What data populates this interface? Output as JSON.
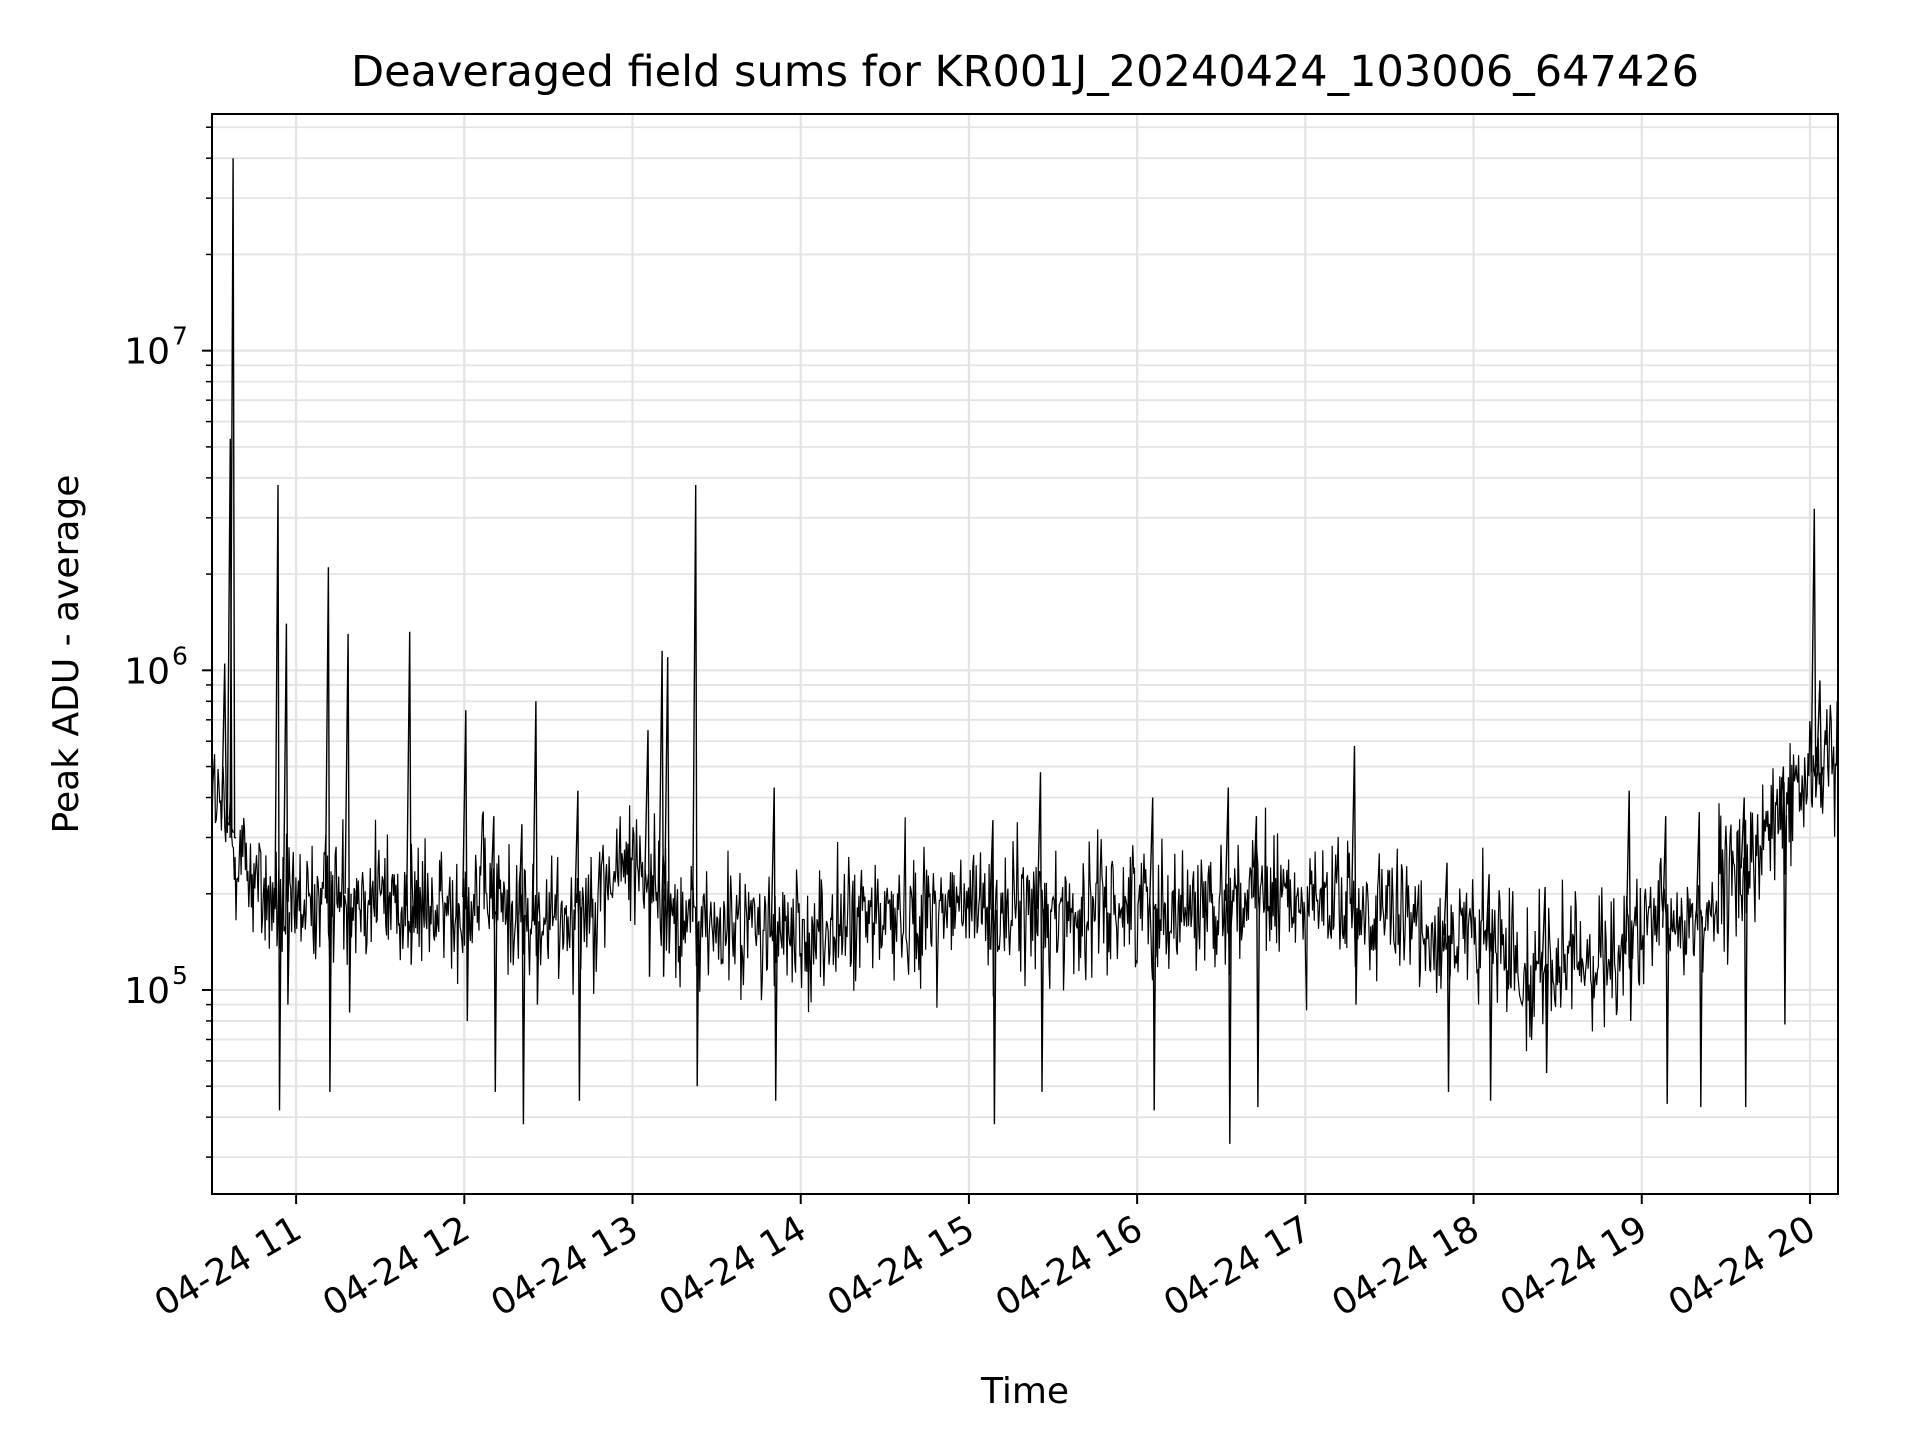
{
  "chart_data": {
    "type": "line",
    "title": "Deaveraged field sums for KR001J_20240424_103006_647426",
    "xlabel": "Time",
    "ylabel": "Peak ADU - average",
    "yscale": "log",
    "ylim": [
      23000,
      55000000
    ],
    "xlim": [
      "2024-04-24 10:30",
      "2024-04-24 20:10"
    ],
    "grid": true,
    "line_color": "#000000",
    "x_ticks": [
      {
        "label": "04-24 11",
        "time": "2024-04-24 11:00"
      },
      {
        "label": "04-24 12",
        "time": "2024-04-24 12:00"
      },
      {
        "label": "04-24 13",
        "time": "2024-04-24 13:00"
      },
      {
        "label": "04-24 14",
        "time": "2024-04-24 14:00"
      },
      {
        "label": "04-24 15",
        "time": "2024-04-24 15:00"
      },
      {
        "label": "04-24 16",
        "time": "2024-04-24 16:00"
      },
      {
        "label": "04-24 17",
        "time": "2024-04-24 17:00"
      },
      {
        "label": "04-24 18",
        "time": "2024-04-24 18:00"
      },
      {
        "label": "04-24 19",
        "time": "2024-04-24 19:00"
      },
      {
        "label": "04-24 20",
        "time": "2024-04-24 20:00"
      }
    ],
    "y_ticks": [
      {
        "base": "10",
        "exp": "5",
        "value": 100000
      },
      {
        "base": "10",
        "exp": "6",
        "value": 1000000
      },
      {
        "base": "10",
        "exp": "7",
        "value": 10000000
      }
    ],
    "series": [
      {
        "x": [
          "2024-04-24 10:30",
          "2024-04-24 10:36",
          "2024-04-24 10:42",
          "2024-04-24 10:48",
          "2024-04-24 10:54",
          "2024-04-24 11:00",
          "2024-04-24 11:06",
          "2024-04-24 11:12",
          "2024-04-24 11:18",
          "2024-04-24 11:24",
          "2024-04-24 11:30",
          "2024-04-24 11:36",
          "2024-04-24 11:42",
          "2024-04-24 11:48",
          "2024-04-24 11:54",
          "2024-04-24 12:00",
          "2024-04-24 12:06",
          "2024-04-24 12:12",
          "2024-04-24 12:18",
          "2024-04-24 12:24",
          "2024-04-24 12:30",
          "2024-04-24 12:36",
          "2024-04-24 12:42",
          "2024-04-24 12:48",
          "2024-04-24 12:54",
          "2024-04-24 13:00",
          "2024-04-24 13:06",
          "2024-04-24 13:12",
          "2024-04-24 13:18",
          "2024-04-24 13:24",
          "2024-04-24 13:30",
          "2024-04-24 13:36",
          "2024-04-24 13:42",
          "2024-04-24 13:48",
          "2024-04-24 13:54",
          "2024-04-24 14:00",
          "2024-04-24 14:06",
          "2024-04-24 14:12",
          "2024-04-24 14:18",
          "2024-04-24 14:24",
          "2024-04-24 14:30",
          "2024-04-24 14:36",
          "2024-04-24 14:42",
          "2024-04-24 14:48",
          "2024-04-24 14:54",
          "2024-04-24 15:00",
          "2024-04-24 15:06",
          "2024-04-24 15:12",
          "2024-04-24 15:18",
          "2024-04-24 15:24",
          "2024-04-24 15:30",
          "2024-04-24 15:36",
          "2024-04-24 15:42",
          "2024-04-24 15:48",
          "2024-04-24 15:54",
          "2024-04-24 16:00",
          "2024-04-24 16:06",
          "2024-04-24 16:12",
          "2024-04-24 16:18",
          "2024-04-24 16:24",
          "2024-04-24 16:30",
          "2024-04-24 16:36",
          "2024-04-24 16:42",
          "2024-04-24 16:48",
          "2024-04-24 16:54",
          "2024-04-24 17:00",
          "2024-04-24 17:06",
          "2024-04-24 17:12",
          "2024-04-24 17:18",
          "2024-04-24 17:24",
          "2024-04-24 17:30",
          "2024-04-24 17:36",
          "2024-04-24 17:42",
          "2024-04-24 17:48",
          "2024-04-24 17:54",
          "2024-04-24 18:00",
          "2024-04-24 18:06",
          "2024-04-24 18:12",
          "2024-04-24 18:18",
          "2024-04-24 18:24",
          "2024-04-24 18:30",
          "2024-04-24 18:36",
          "2024-04-24 18:42",
          "2024-04-24 18:48",
          "2024-04-24 18:54",
          "2024-04-24 19:00",
          "2024-04-24 19:06",
          "2024-04-24 19:12",
          "2024-04-24 19:18",
          "2024-04-24 19:24",
          "2024-04-24 19:30",
          "2024-04-24 19:36",
          "2024-04-24 19:42",
          "2024-04-24 19:48",
          "2024-04-24 19:54",
          "2024-04-24 20:00",
          "2024-04-24 20:06"
        ],
        "values": [
          420000,
          310000,
          250000,
          200000,
          175000,
          175000,
          185000,
          195000,
          200000,
          205000,
          200000,
          190000,
          180000,
          175000,
          170000,
          195000,
          205000,
          190000,
          175000,
          165000,
          160000,
          175000,
          185000,
          200000,
          230000,
          260000,
          230000,
          190000,
          170000,
          160000,
          155000,
          155000,
          160000,
          150000,
          145000,
          145000,
          150000,
          155000,
          160000,
          165000,
          170000,
          175000,
          175000,
          180000,
          180000,
          180000,
          180000,
          175000,
          175000,
          180000,
          175000,
          170000,
          175000,
          180000,
          185000,
          190000,
          185000,
          180000,
          180000,
          185000,
          190000,
          190000,
          195000,
          195000,
          190000,
          190000,
          185000,
          180000,
          175000,
          170000,
          165000,
          160000,
          155000,
          150000,
          145000,
          145000,
          140000,
          130000,
          120000,
          115000,
          115000,
          120000,
          125000,
          130000,
          140000,
          150000,
          155000,
          160000,
          165000,
          180000,
          200000,
          240000,
          280000,
          330000,
          400000,
          470000,
          530000
        ],
        "spikes": [
          {
            "x": "2024-04-24 10:37",
            "high": 40000000,
            "low": 300000
          },
          {
            "x": "2024-04-24 10:36",
            "high": 5300000,
            "low": 320000
          },
          {
            "x": "2024-04-24 10:34",
            "high": 1050000,
            "low": 400000
          },
          {
            "x": "2024-04-24 10:53",
            "high": 3800000,
            "low": 42000
          },
          {
            "x": "2024-04-24 10:56",
            "high": 1400000,
            "low": 90000
          },
          {
            "x": "2024-04-24 11:11",
            "high": 2100000,
            "low": 48000
          },
          {
            "x": "2024-04-24 11:18",
            "high": 1300000,
            "low": 85000
          },
          {
            "x": "2024-04-24 11:40",
            "high": 1320000,
            "low": 120000
          },
          {
            "x": "2024-04-24 12:00",
            "high": 750000,
            "low": 80000
          },
          {
            "x": "2024-04-24 12:10",
            "high": 350000,
            "low": 48000
          },
          {
            "x": "2024-04-24 12:20",
            "high": 330000,
            "low": 38000
          },
          {
            "x": "2024-04-24 12:25",
            "high": 800000,
            "low": 90000
          },
          {
            "x": "2024-04-24 12:40",
            "high": 420000,
            "low": 45000
          },
          {
            "x": "2024-04-24 13:05",
            "high": 650000,
            "low": 110000
          },
          {
            "x": "2024-04-24 13:10",
            "high": 1150000,
            "low": 110000
          },
          {
            "x": "2024-04-24 13:12",
            "high": 1100000,
            "low": 130000
          },
          {
            "x": "2024-04-24 13:22",
            "high": 3800000,
            "low": 50000
          },
          {
            "x": "2024-04-24 13:50",
            "high": 430000,
            "low": 45000
          },
          {
            "x": "2024-04-24 15:08",
            "high": 340000,
            "low": 38000
          },
          {
            "x": "2024-04-24 15:25",
            "high": 480000,
            "low": 48000
          },
          {
            "x": "2024-04-24 16:05",
            "high": 400000,
            "low": 42000
          },
          {
            "x": "2024-04-24 16:32",
            "high": 430000,
            "low": 33000
          },
          {
            "x": "2024-04-24 16:42",
            "high": 350000,
            "low": 43000
          },
          {
            "x": "2024-04-24 17:17",
            "high": 580000,
            "low": 90000
          },
          {
            "x": "2024-04-24 17:50",
            "high": 250000,
            "low": 48000
          },
          {
            "x": "2024-04-24 18:05",
            "high": 230000,
            "low": 45000
          },
          {
            "x": "2024-04-24 18:25",
            "high": 210000,
            "low": 55000
          },
          {
            "x": "2024-04-24 18:55",
            "high": 420000,
            "low": 80000
          },
          {
            "x": "2024-04-24 19:08",
            "high": 350000,
            "low": 44000
          },
          {
            "x": "2024-04-24 19:20",
            "high": 360000,
            "low": 43000
          },
          {
            "x": "2024-04-24 19:36",
            "high": 400000,
            "low": 43000
          },
          {
            "x": "2024-04-24 19:50",
            "high": 500000,
            "low": 78000
          },
          {
            "x": "2024-04-24 20:01",
            "high": 3200000,
            "low": 400000
          },
          {
            "x": "2024-04-24 20:03",
            "high": 930000,
            "low": 450000
          }
        ]
      }
    ]
  }
}
